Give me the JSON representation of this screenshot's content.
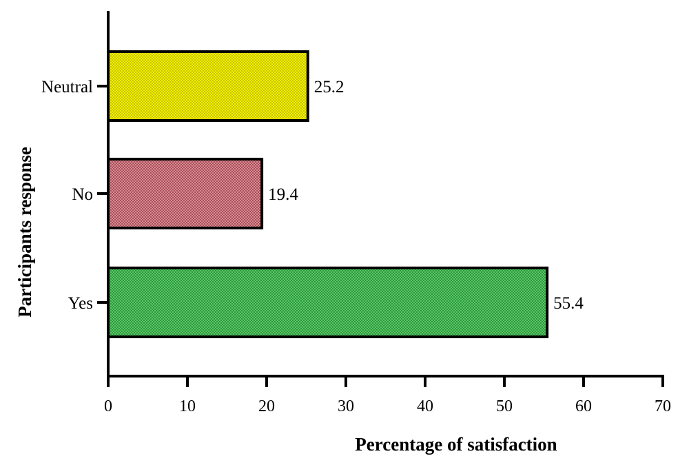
{
  "chart_data": {
    "type": "bar",
    "orientation": "horizontal",
    "categories": [
      "Neutral",
      "No",
      "Yes"
    ],
    "values": [
      25.2,
      19.4,
      55.4
    ],
    "data_labels": [
      "25.2",
      "19.4",
      "55.4"
    ],
    "xlabel": "Percentage of satisfaction",
    "ylabel": "Participants response",
    "xlim": [
      0,
      70
    ],
    "xticks": [
      "0",
      "10",
      "20",
      "30",
      "40",
      "50",
      "60",
      "70"
    ],
    "grid": false,
    "legend": "none",
    "colors": [
      "#f2ef00",
      "#c9707a",
      "#3fb34f"
    ]
  }
}
